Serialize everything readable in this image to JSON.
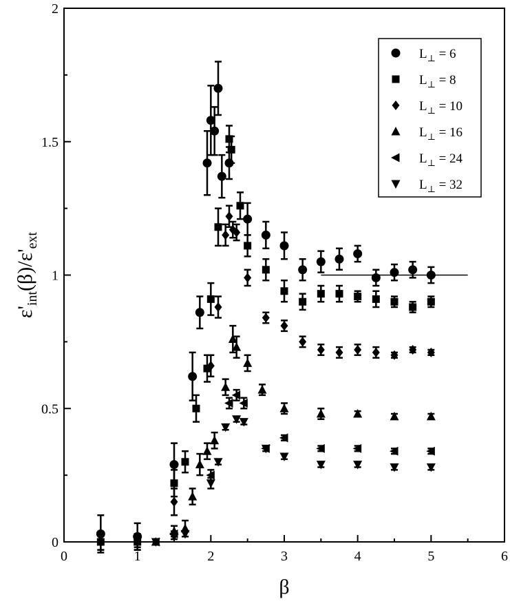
{
  "chart_data": {
    "type": "scatter",
    "title": "",
    "xlabel": "β",
    "ylabel": {
      "parts": [
        {
          "text": "ε'",
          "role": "base"
        },
        {
          "text": "int",
          "role": "sub"
        },
        {
          "text": "(β)/ε'",
          "role": "base"
        },
        {
          "text": "ext",
          "role": "sub"
        }
      ]
    },
    "xlim": [
      0,
      6
    ],
    "ylim": [
      0,
      2
    ],
    "x_ticks": [
      0,
      1,
      2,
      3,
      4,
      5,
      6
    ],
    "y_ticks": [
      0,
      0.5,
      1,
      1.5,
      2
    ],
    "x_tick_labels": [
      "0",
      "1",
      "2",
      "3",
      "4",
      "5",
      "6"
    ],
    "y_tick_labels": [
      "0",
      "0.5",
      "1",
      "1.5",
      "2"
    ],
    "grid": false,
    "legend_position": "top-right",
    "reference_line": {
      "x": [
        3.5,
        5.5
      ],
      "y": 1.0
    },
    "series": [
      {
        "name": "L⊥ = 6",
        "label": {
          "base": "L",
          "sub": "⊥",
          "rest": " = 6"
        },
        "marker": "circle",
        "points": [
          [
            0.5,
            0.03,
            0.07
          ],
          [
            1.0,
            0.02,
            0.05
          ],
          [
            1.5,
            0.29,
            0.08
          ],
          [
            1.75,
            0.62,
            0.09
          ],
          [
            1.85,
            0.86,
            0.06
          ],
          [
            1.95,
            1.42,
            0.12
          ],
          [
            2.0,
            1.58,
            0.13
          ],
          [
            2.05,
            1.54,
            0.09
          ],
          [
            2.1,
            1.7,
            0.1
          ],
          [
            2.15,
            1.37,
            0.08
          ],
          [
            2.25,
            1.42,
            0.06
          ],
          [
            2.5,
            1.21,
            0.06
          ],
          [
            2.75,
            1.15,
            0.05
          ],
          [
            3.0,
            1.11,
            0.05
          ],
          [
            3.25,
            1.02,
            0.04
          ],
          [
            3.5,
            1.05,
            0.04
          ],
          [
            3.75,
            1.06,
            0.04
          ],
          [
            4.0,
            1.08,
            0.03
          ],
          [
            4.25,
            0.99,
            0.03
          ],
          [
            4.5,
            1.01,
            0.03
          ],
          [
            4.75,
            1.02,
            0.03
          ],
          [
            5.0,
            1.0,
            0.03
          ]
        ]
      },
      {
        "name": "L⊥ = 8",
        "label": {
          "base": "L",
          "sub": "⊥",
          "rest": " = 8"
        },
        "marker": "square",
        "points": [
          [
            0.5,
            0.0,
            0.03
          ],
          [
            1.0,
            0.0,
            0.03
          ],
          [
            1.5,
            0.22,
            0.05
          ],
          [
            1.65,
            0.3,
            0.04
          ],
          [
            1.8,
            0.5,
            0.05
          ],
          [
            1.95,
            0.65,
            0.05
          ],
          [
            2.0,
            0.91,
            0.06
          ],
          [
            2.1,
            1.18,
            0.07
          ],
          [
            2.25,
            1.51,
            0.05
          ],
          [
            2.28,
            1.47,
            0.05
          ],
          [
            2.4,
            1.26,
            0.05
          ],
          [
            2.5,
            1.11,
            0.04
          ],
          [
            2.75,
            1.02,
            0.04
          ],
          [
            3.0,
            0.94,
            0.04
          ],
          [
            3.25,
            0.9,
            0.03
          ],
          [
            3.5,
            0.93,
            0.03
          ],
          [
            3.75,
            0.93,
            0.03
          ],
          [
            4.0,
            0.92,
            0.02
          ],
          [
            4.25,
            0.91,
            0.03
          ],
          [
            4.5,
            0.9,
            0.02
          ],
          [
            4.75,
            0.88,
            0.02
          ],
          [
            5.0,
            0.9,
            0.02
          ]
        ]
      },
      {
        "name": "L⊥ = 10",
        "label": {
          "base": "L",
          "sub": "⊥",
          "rest": " = 10"
        },
        "marker": "diamond",
        "points": [
          [
            0.5,
            0.0,
            0.03
          ],
          [
            1.0,
            0.0,
            0.02
          ],
          [
            1.5,
            0.15,
            0.05
          ],
          [
            2.0,
            0.66,
            0.04
          ],
          [
            2.1,
            0.88,
            0.04
          ],
          [
            2.2,
            1.15,
            0.04
          ],
          [
            2.25,
            1.22,
            0.04
          ],
          [
            2.3,
            1.17,
            0.03
          ],
          [
            2.35,
            1.16,
            0.03
          ],
          [
            2.5,
            0.99,
            0.03
          ],
          [
            2.75,
            0.84,
            0.02
          ],
          [
            3.0,
            0.81,
            0.02
          ],
          [
            3.25,
            0.75,
            0.02
          ],
          [
            3.5,
            0.72,
            0.02
          ],
          [
            3.75,
            0.71,
            0.02
          ],
          [
            4.0,
            0.72,
            0.02
          ],
          [
            4.25,
            0.71,
            0.02
          ],
          [
            4.5,
            0.7,
            0.01
          ],
          [
            4.75,
            0.72,
            0.01
          ],
          [
            5.0,
            0.71,
            0.01
          ]
        ]
      },
      {
        "name": "L⊥ = 16",
        "label": {
          "base": "L",
          "sub": "⊥",
          "rest": " = 16"
        },
        "marker": "triangle-up",
        "points": [
          [
            1.25,
            0.0,
            0.01
          ],
          [
            1.5,
            0.04,
            0.02
          ],
          [
            1.65,
            0.05,
            0.03
          ],
          [
            1.75,
            0.17,
            0.03
          ],
          [
            1.85,
            0.29,
            0.04
          ],
          [
            1.95,
            0.34,
            0.03
          ],
          [
            2.05,
            0.38,
            0.03
          ],
          [
            2.2,
            0.58,
            0.03
          ],
          [
            2.3,
            0.76,
            0.05
          ],
          [
            2.35,
            0.73,
            0.04
          ],
          [
            2.5,
            0.67,
            0.03
          ],
          [
            2.7,
            0.57,
            0.02
          ],
          [
            3.0,
            0.5,
            0.02
          ],
          [
            3.5,
            0.48,
            0.02
          ],
          [
            4.0,
            0.48,
            0.01
          ],
          [
            4.5,
            0.47,
            0.01
          ],
          [
            5.0,
            0.47,
            0.01
          ]
        ]
      },
      {
        "name": "L⊥ = 24",
        "label": {
          "base": "L",
          "sub": "⊥",
          "rest": " = 24"
        },
        "marker": "triangle-left",
        "points": [
          [
            1.25,
            0.0,
            0.01
          ],
          [
            1.5,
            0.03,
            0.01
          ],
          [
            2.0,
            0.25,
            0.02
          ],
          [
            2.25,
            0.52,
            0.02
          ],
          [
            2.35,
            0.55,
            0.02
          ],
          [
            2.45,
            0.52,
            0.02
          ],
          [
            2.75,
            0.35,
            0.01
          ],
          [
            3.0,
            0.39,
            0.01
          ],
          [
            3.5,
            0.35,
            0.01
          ],
          [
            4.0,
            0.35,
            0.01
          ],
          [
            4.5,
            0.34,
            0.01
          ],
          [
            5.0,
            0.34,
            0.01
          ]
        ]
      },
      {
        "name": "L⊥ = 32",
        "label": {
          "base": "L",
          "sub": "⊥",
          "rest": " = 32"
        },
        "marker": "triangle-down",
        "points": [
          [
            1.25,
            0.0,
            0.01
          ],
          [
            1.5,
            0.02,
            0.01
          ],
          [
            1.65,
            0.03,
            0.01
          ],
          [
            2.0,
            0.22,
            0.02
          ],
          [
            2.1,
            0.3,
            0.01
          ],
          [
            2.2,
            0.43,
            0.01
          ],
          [
            2.35,
            0.46,
            0.01
          ],
          [
            2.45,
            0.45,
            0.01
          ],
          [
            2.75,
            0.35,
            0.01
          ],
          [
            3.0,
            0.32,
            0.01
          ],
          [
            3.5,
            0.29,
            0.01
          ],
          [
            4.0,
            0.29,
            0.01
          ],
          [
            4.5,
            0.28,
            0.01
          ],
          [
            5.0,
            0.28,
            0.01
          ]
        ]
      }
    ]
  }
}
